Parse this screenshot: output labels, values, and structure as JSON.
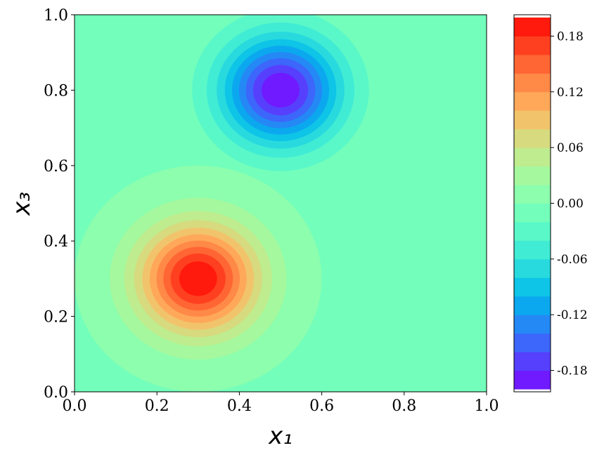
{
  "chart_data": {
    "type": "contourf",
    "x_label": "x₁",
    "y_label": "x₃",
    "xlim": [
      0,
      1
    ],
    "ylim": [
      0,
      1
    ],
    "xticks": [
      {
        "value": 0,
        "label": "0.0"
      },
      {
        "value": 0.2,
        "label": "0.2"
      },
      {
        "value": 0.4,
        "label": "0.4"
      },
      {
        "value": 0.6,
        "label": "0.6"
      },
      {
        "value": 0.8,
        "label": "0.8"
      },
      {
        "value": 1,
        "label": "1.0"
      }
    ],
    "yticks": [
      {
        "value": 0,
        "label": "0.0"
      },
      {
        "value": 0.2,
        "label": "0.2"
      },
      {
        "value": 0.4,
        "label": "0.4"
      },
      {
        "value": 0.6,
        "label": "0.6"
      },
      {
        "value": 0.8,
        "label": "0.8"
      },
      {
        "value": 1,
        "label": "1.0"
      }
    ],
    "colormap": "rainbow",
    "levels": [
      -0.2,
      -0.18,
      -0.16,
      -0.14,
      -0.12,
      -0.1,
      -0.08,
      -0.06,
      -0.04,
      -0.02,
      0,
      0.02,
      0.04,
      0.06,
      0.08,
      0.1,
      0.12,
      0.14,
      0.16,
      0.18,
      0.2
    ],
    "clim": [
      -0.203,
      0.203
    ],
    "cticks": [
      0.18,
      0.12,
      0.06,
      {
        "value": 0,
        "label": "0.00"
      },
      -0.06,
      -0.12,
      -0.18
    ],
    "blobs": [
      {
        "x": 0.3,
        "y": 0.3,
        "amplitude": 0.2,
        "sigma": 0.1
      },
      {
        "x": 0.5,
        "y": 0.8,
        "amplitude": -0.2,
        "sigma": 0.1
      }
    ]
  }
}
